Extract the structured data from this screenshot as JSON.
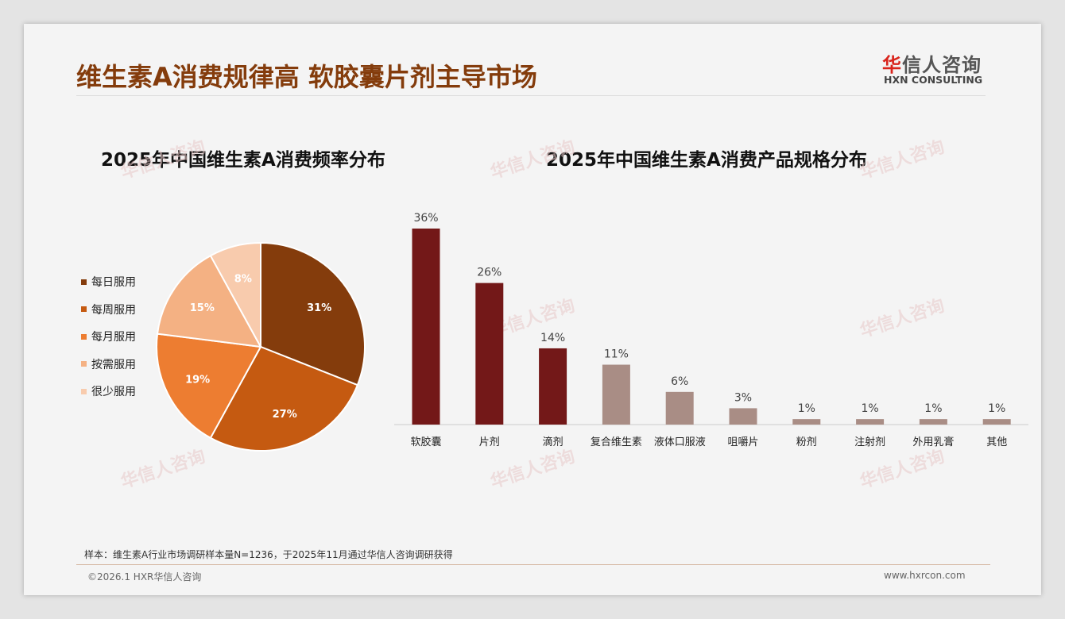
{
  "header": {
    "title": "维生素A消费规律高 软胶囊片剂主导市场",
    "logo_cn_first": "华",
    "logo_cn_rest": "信人咨询",
    "logo_en": "HXN CONSULTING"
  },
  "footer": {
    "note": "样本：维生素A行业市场调研样本量N=1236，于2025年11月通过华信人咨询调研获得",
    "copyright": "©2026.1 HXR华信人咨询",
    "url": "www.hxrcon.com"
  },
  "chart_data": [
    {
      "type": "pie",
      "title": "2025年中国维生素A消费频率分布",
      "legend_position": "left",
      "categories": [
        "每日服用",
        "每周服用",
        "每月服用",
        "按需服用",
        "很少服用"
      ],
      "values": [
        31,
        27,
        19,
        15,
        8
      ],
      "labels": [
        "31%",
        "27%",
        "19%",
        "15%",
        "8%"
      ],
      "colors": [
        "#843c0c",
        "#c55a11",
        "#ed7d31",
        "#f4b183",
        "#f8cbad"
      ]
    },
    {
      "type": "bar",
      "title": "2025年中国维生素A消费产品规格分布",
      "categories": [
        "软胶囊",
        "片剂",
        "滴剂",
        "复合维生素",
        "液体口服液",
        "咀嚼片",
        "粉剂",
        "注射剂",
        "外用乳膏",
        "其他"
      ],
      "values": [
        36,
        26,
        14,
        11,
        6,
        3,
        1,
        1,
        1,
        1
      ],
      "labels": [
        "36%",
        "26%",
        "14%",
        "11%",
        "6%",
        "3%",
        "1%",
        "1%",
        "1%",
        "1%"
      ],
      "colors": {
        "highlight": "#731818",
        "normal": "#a98d85"
      },
      "ylim": [
        0,
        36
      ]
    }
  ]
}
